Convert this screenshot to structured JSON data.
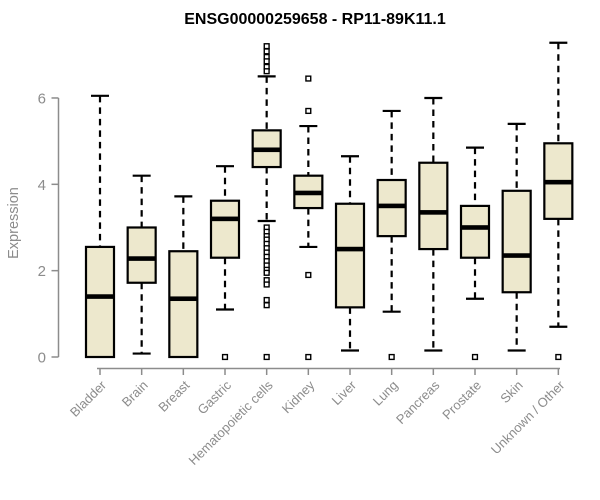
{
  "title": "ENSG00000259658 - RP11-89K11.1",
  "chart_data": {
    "type": "boxplot",
    "title": "ENSG00000259658 - RP11-89K11.1",
    "xlabel": "",
    "ylabel": "Expression",
    "ylim": [
      0,
      7.4
    ],
    "yticks": [
      0,
      2,
      4,
      6
    ],
    "grid": false,
    "legend": "none",
    "categories": [
      "Bladder",
      "Brain",
      "Breast",
      "Gastric",
      "Hematopoietic cells",
      "Kidney",
      "Liver",
      "Lung",
      "Pancreas",
      "Prostate",
      "Skin",
      "Unknown / Other"
    ],
    "boxes": [
      {
        "category": "Bladder",
        "whisker_low": 0,
        "q1": 0,
        "median": 1.4,
        "q3": 2.55,
        "whisker_high": 6.05,
        "outliers": []
      },
      {
        "category": "Brain",
        "whisker_low": 0.08,
        "q1": 1.72,
        "median": 2.28,
        "q3": 3.0,
        "whisker_high": 4.2,
        "outliers": []
      },
      {
        "category": "Breast",
        "whisker_low": 0,
        "q1": 0,
        "median": 1.35,
        "q3": 2.45,
        "whisker_high": 3.72,
        "outliers": []
      },
      {
        "category": "Gastric",
        "whisker_low": 1.1,
        "q1": 2.3,
        "median": 3.2,
        "q3": 3.62,
        "whisker_high": 4.42,
        "outliers": [
          0
        ]
      },
      {
        "category": "Hematopoietic cells",
        "whisker_low": 3.15,
        "q1": 4.4,
        "median": 4.8,
        "q3": 5.25,
        "whisker_high": 6.5,
        "outliers": [
          7.2,
          7.08,
          6.95,
          6.85,
          6.72,
          6.62,
          3.0,
          2.9,
          2.8,
          2.72,
          2.62,
          2.52,
          2.42,
          2.32,
          2.22,
          2.12,
          2.02,
          1.95,
          1.78,
          1.68,
          1.32,
          1.2,
          0
        ]
      },
      {
        "category": "Kidney",
        "whisker_low": 2.55,
        "q1": 3.45,
        "median": 3.8,
        "q3": 4.2,
        "whisker_high": 5.35,
        "outliers": [
          6.45,
          5.7,
          1.9,
          0
        ]
      },
      {
        "category": "Liver",
        "whisker_low": 0.15,
        "q1": 1.15,
        "median": 2.5,
        "q3": 3.55,
        "whisker_high": 4.65,
        "outliers": []
      },
      {
        "category": "Lung",
        "whisker_low": 1.05,
        "q1": 2.8,
        "median": 3.5,
        "q3": 4.1,
        "whisker_high": 5.7,
        "outliers": [
          0
        ]
      },
      {
        "category": "Pancreas",
        "whisker_low": 0.15,
        "q1": 2.5,
        "median": 3.35,
        "q3": 4.5,
        "whisker_high": 6.0,
        "outliers": []
      },
      {
        "category": "Prostate",
        "whisker_low": 1.35,
        "q1": 2.3,
        "median": 3.0,
        "q3": 3.5,
        "whisker_high": 4.85,
        "outliers": [
          0
        ]
      },
      {
        "category": "Skin",
        "whisker_low": 0.15,
        "q1": 1.5,
        "median": 2.35,
        "q3": 3.85,
        "whisker_high": 5.4,
        "outliers": []
      },
      {
        "category": "Unknown / Other",
        "whisker_low": 0.7,
        "q1": 3.2,
        "median": 4.05,
        "q3": 4.95,
        "whisker_high": 7.28,
        "outliers": [
          0
        ]
      }
    ],
    "colors": {
      "box_fill": "#EDE8CD",
      "box_stroke": "#000000",
      "median_color": "#000000",
      "whisker_color": "#000000",
      "outlier_stroke": "#000000",
      "axis_color": "#8C8C8C",
      "tick_label_color": "#8C8C8C",
      "title_color": "#000000"
    }
  }
}
